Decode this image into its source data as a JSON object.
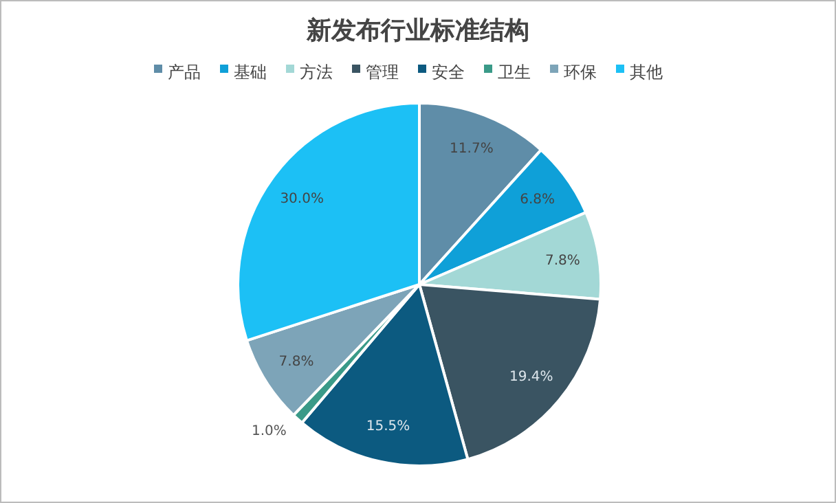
{
  "chart_data": {
    "type": "pie",
    "title": "新发布行业标准结构",
    "categories": [
      "产品",
      "基础",
      "方法",
      "管理",
      "安全",
      "卫生",
      "环保",
      "其他"
    ],
    "values": [
      11.7,
      6.8,
      7.8,
      19.4,
      15.5,
      1.0,
      7.8,
      30.0
    ],
    "value_labels": [
      "11.7%",
      "6.8%",
      "7.8%",
      "19.4%",
      "15.5%",
      "1.0%",
      "7.8%",
      "30.0%"
    ],
    "colors": [
      "#5f8da8",
      "#0fa0d8",
      "#a3d8d6",
      "#3a5462",
      "#0c5a80",
      "#3a9a88",
      "#7da4b8",
      "#1cc0f5"
    ],
    "legend": "top"
  }
}
